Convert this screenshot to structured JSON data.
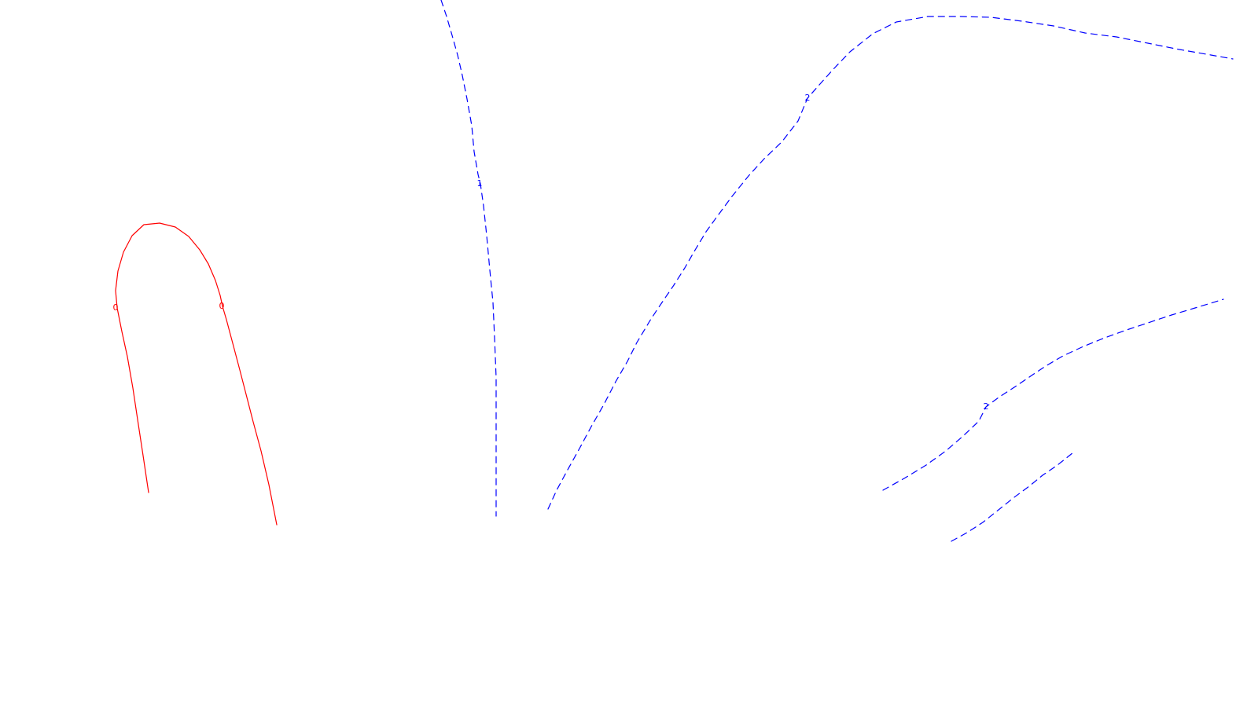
{
  "chart_data": {
    "type": "contour",
    "title": "",
    "xlabel": "",
    "ylabel": "",
    "grid": false,
    "legend": "none",
    "levels": [
      {
        "level": "0",
        "style": "solid",
        "color": "#ff0000",
        "lines": [
          {
            "label": "0",
            "points": [
              [
                189,
                627
              ],
              [
                182,
                580
              ],
              [
                175,
                534
              ],
              [
                169,
                494
              ],
              [
                162,
                454
              ],
              [
                155,
                422
              ],
              [
                149,
                392
              ],
              [
                147,
                370
              ],
              [
                150,
                345
              ],
              [
                157,
                321
              ],
              [
                168,
                300
              ],
              [
                183,
                286
              ],
              [
                203,
                284
              ],
              [
                223,
                289
              ],
              [
                240,
                301
              ],
              [
                254,
                318
              ],
              [
                265,
                336
              ],
              [
                274,
                357
              ],
              [
                280,
                376
              ],
              [
                283,
                390
              ],
              [
                288,
                407
              ],
              [
                296,
                437
              ],
              [
                305,
                471
              ],
              [
                313,
                502
              ],
              [
                322,
                537
              ],
              [
                332,
                574
              ],
              [
                342,
                617
              ],
              [
                352,
                668
              ]
            ]
          }
        ],
        "label_positions": [
          [
            147,
            392
          ],
          [
            282,
            390
          ]
        ]
      },
      {
        "level": "1",
        "style": "dashed",
        "color": "#0000ff",
        "lines": [
          {
            "label": "1",
            "points": [
              [
                561,
                0
              ],
              [
                568,
                21
              ],
              [
                575,
                45
              ],
              [
                582,
                70
              ],
              [
                588,
                96
              ],
              [
                594,
                126
              ],
              [
                600,
                160
              ],
              [
                603,
                193
              ],
              [
                608,
                222
              ],
              [
                611,
                234
              ],
              [
                615,
                262
              ],
              [
                619,
                300
              ],
              [
                623,
                344
              ],
              [
                627,
                385
              ],
              [
                629,
                430
              ],
              [
                631,
                480
              ],
              [
                631,
                530
              ],
              [
                631,
                580
              ],
              [
                631,
                620
              ],
              [
                631,
                657
              ]
            ]
          }
        ],
        "label_positions": [
          [
            610,
            234
          ]
        ]
      },
      {
        "level": "2",
        "style": "dashed",
        "color": "#0000ff",
        "lines": [
          {
            "label": "2",
            "points": [
              [
                697,
                648
              ],
              [
                708,
                624
              ],
              [
                722,
                598
              ],
              [
                737,
                571
              ],
              [
                752,
                543
              ],
              [
                768,
                515
              ],
              [
                783,
                486
              ],
              [
                798,
                460
              ],
              [
                810,
                436
              ],
              [
                828,
                406
              ],
              [
                842,
                385
              ],
              [
                857,
                363
              ],
              [
                871,
                341
              ],
              [
                883,
                320
              ],
              [
                898,
                295
              ],
              [
                914,
                273
              ],
              [
                931,
                250
              ],
              [
                952,
                224
              ],
              [
                972,
                202
              ],
              [
                994,
                181
              ],
              [
                1015,
                154
              ],
              [
                1027,
                125
              ],
              [
                1042,
                108
              ],
              [
                1060,
                88
              ],
              [
                1081,
                66
              ],
              [
                1110,
                43
              ],
              [
                1140,
                28
              ],
              [
                1180,
                21
              ],
              [
                1220,
                21
              ],
              [
                1260,
                22
              ],
              [
                1300,
                27
              ],
              [
                1340,
                33
              ],
              [
                1380,
                42
              ],
              [
                1420,
                47
              ],
              [
                1460,
                55
              ],
              [
                1500,
                63
              ],
              [
                1540,
                70
              ],
              [
                1568,
                75
              ]
            ]
          },
          {
            "label": "2",
            "points": [
              [
                1123,
                624
              ],
              [
                1150,
                609
              ],
              [
                1178,
                592
              ],
              [
                1203,
                574
              ],
              [
                1225,
                555
              ],
              [
                1245,
                536
              ],
              [
                1254,
                518
              ],
              [
                1270,
                506
              ],
              [
                1290,
                493
              ],
              [
                1312,
                478
              ],
              [
                1330,
                466
              ],
              [
                1352,
                453
              ],
              [
                1378,
                441
              ],
              [
                1405,
                430
              ],
              [
                1433,
                420
              ],
              [
                1460,
                411
              ],
              [
                1490,
                401
              ],
              [
                1520,
                392
              ],
              [
                1556,
                381
              ]
            ]
          },
          {
            "label": "",
            "points": [
              [
                1210,
                689
              ],
              [
                1230,
                678
              ],
              [
                1250,
                665
              ],
              [
                1270,
                649
              ],
              [
                1290,
                633
              ],
              [
                1309,
                619
              ],
              [
                1326,
                605
              ],
              [
                1345,
                592
              ],
              [
                1365,
                576
              ]
            ]
          }
        ],
        "label_positions": [
          [
            1027,
            125
          ],
          [
            1254,
            518
          ]
        ]
      }
    ]
  }
}
